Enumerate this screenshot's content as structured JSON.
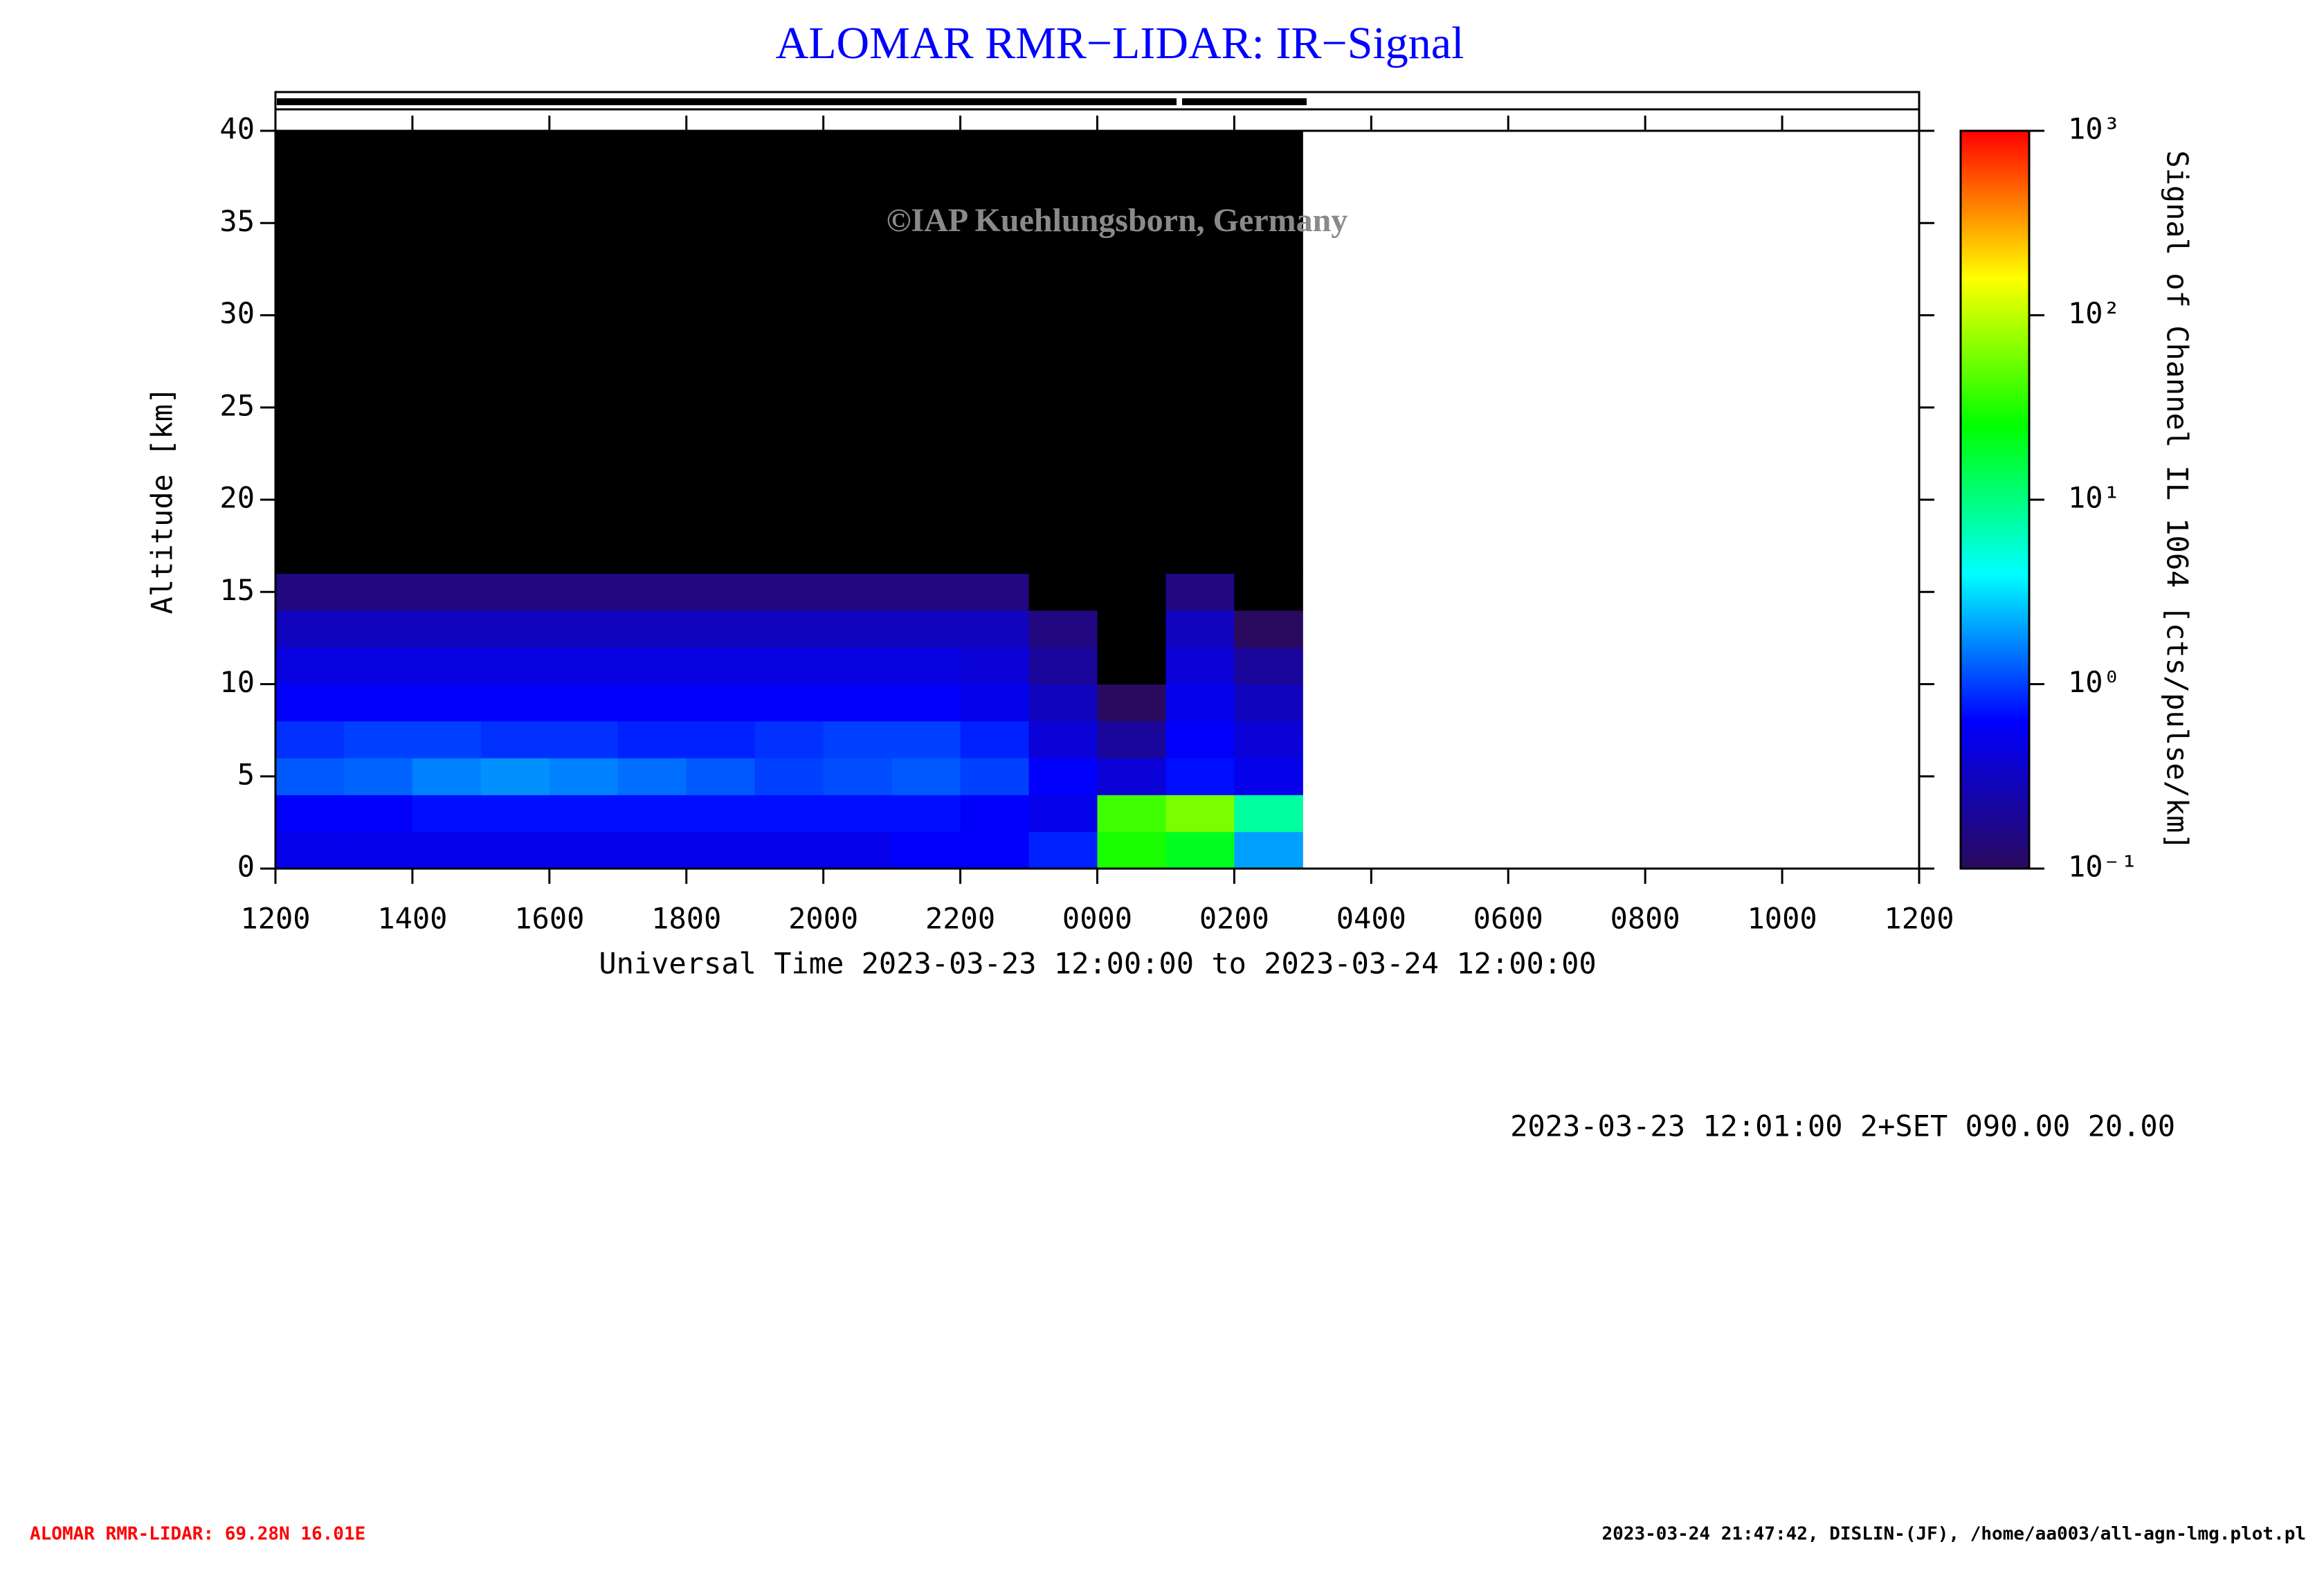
{
  "chart_data": {
    "type": "heatmap",
    "title": "ALOMAR RMR−LIDAR: IR−Signal",
    "watermark": "©IAP Kuehlungsborn, Germany",
    "x_label": "Universal Time 2023-03-23 12:00:00 to 2023-03-24 12:00:00",
    "y_label": "Altitude [km]",
    "colorbar_label": "Signal of Channel IL 1064 [cts/pulse/km]",
    "info": "2023-03-23 12:01:00 2+SET 090.00 20.00",
    "footer_left": "ALOMAR RMR-LIDAR: 69.28N 16.01E",
    "footer_right": "2023-03-24 21:47:42, DISLIN-(JF), /home/aa003/all-agn-lmg.plot.pl",
    "xlim": [
      0,
      24
    ],
    "xticks": [
      {
        "value": 0,
        "label": "1200"
      },
      {
        "value": 2,
        "label": "1400"
      },
      {
        "value": 4,
        "label": "1600"
      },
      {
        "value": 6,
        "label": "1800"
      },
      {
        "value": 8,
        "label": "2000"
      },
      {
        "value": 10,
        "label": "2200"
      },
      {
        "value": 12,
        "label": "0000"
      },
      {
        "value": 14,
        "label": "0200"
      },
      {
        "value": 16,
        "label": "0400"
      },
      {
        "value": 18,
        "label": "0600"
      },
      {
        "value": 20,
        "label": "0800"
      },
      {
        "value": 22,
        "label": "1000"
      },
      {
        "value": 24,
        "label": "1200"
      }
    ],
    "ylim": [
      0,
      40
    ],
    "yticks": [
      0,
      5,
      10,
      15,
      20,
      25,
      30,
      35,
      40
    ],
    "x_bins": [
      0,
      1,
      2,
      3,
      4,
      5,
      6,
      7,
      8,
      9,
      10,
      11,
      12,
      13,
      14,
      15
    ],
    "y_bins": [
      0,
      2,
      4,
      6,
      8,
      10,
      12,
      14,
      16,
      40
    ],
    "values": [
      [
        0.5,
        0.5,
        0.5,
        0.5,
        0.5,
        0.5,
        0.5,
        0.5,
        0.5,
        0.6,
        0.6,
        0.8,
        30,
        20,
        2
      ],
      [
        0.6,
        0.6,
        0.7,
        0.7,
        0.7,
        0.7,
        0.7,
        0.7,
        0.7,
        0.7,
        0.6,
        0.5,
        40,
        60,
        8
      ],
      [
        1.2,
        1.3,
        1.6,
        1.8,
        1.6,
        1.4,
        1.2,
        1.0,
        1.1,
        1.2,
        1.0,
        0.6,
        0.4,
        0.7,
        0.5
      ],
      [
        0.9,
        1.0,
        1.0,
        0.9,
        0.9,
        0.8,
        0.8,
        0.9,
        1.0,
        1.0,
        0.8,
        0.4,
        0.2,
        0.6,
        0.4
      ],
      [
        0.6,
        0.6,
        0.6,
        0.6,
        0.6,
        0.6,
        0.6,
        0.6,
        0.6,
        0.6,
        0.5,
        0.3,
        0.1,
        0.5,
        0.3
      ],
      [
        0.45,
        0.45,
        0.45,
        0.45,
        0.45,
        0.45,
        0.45,
        0.45,
        0.45,
        0.45,
        0.4,
        0.2,
        0.05,
        0.4,
        0.2
      ],
      [
        0.3,
        0.3,
        0.3,
        0.3,
        0.3,
        0.3,
        0.3,
        0.3,
        0.3,
        0.3,
        0.3,
        0.15,
        0.03,
        0.3,
        0.1
      ],
      [
        0.15,
        0.15,
        0.15,
        0.15,
        0.15,
        0.15,
        0.15,
        0.15,
        0.15,
        0.15,
        0.15,
        0.08,
        0.02,
        0.15,
        0.05
      ],
      [
        0.02,
        0.02,
        0.02,
        0.02,
        0.02,
        0.02,
        0.02,
        0.02,
        0.02,
        0.02,
        0.02,
        0.02,
        0.02,
        0.02,
        0.02
      ]
    ],
    "clim": [
      0.1,
      1000
    ],
    "log_color": true,
    "cticks": [
      {
        "value": 0.1,
        "label": "10⁻¹"
      },
      {
        "value": 1,
        "label": "10⁰"
      },
      {
        "value": 10,
        "label": "10¹"
      },
      {
        "value": 100,
        "label": "10²"
      },
      {
        "value": 1000,
        "label": "10³"
      }
    ],
    "colormap": [
      "#2a0a5e",
      "#0000ff",
      "#00ffff",
      "#00ff00",
      "#ffff00",
      "#ff0000"
    ],
    "under_color": "#000000"
  }
}
